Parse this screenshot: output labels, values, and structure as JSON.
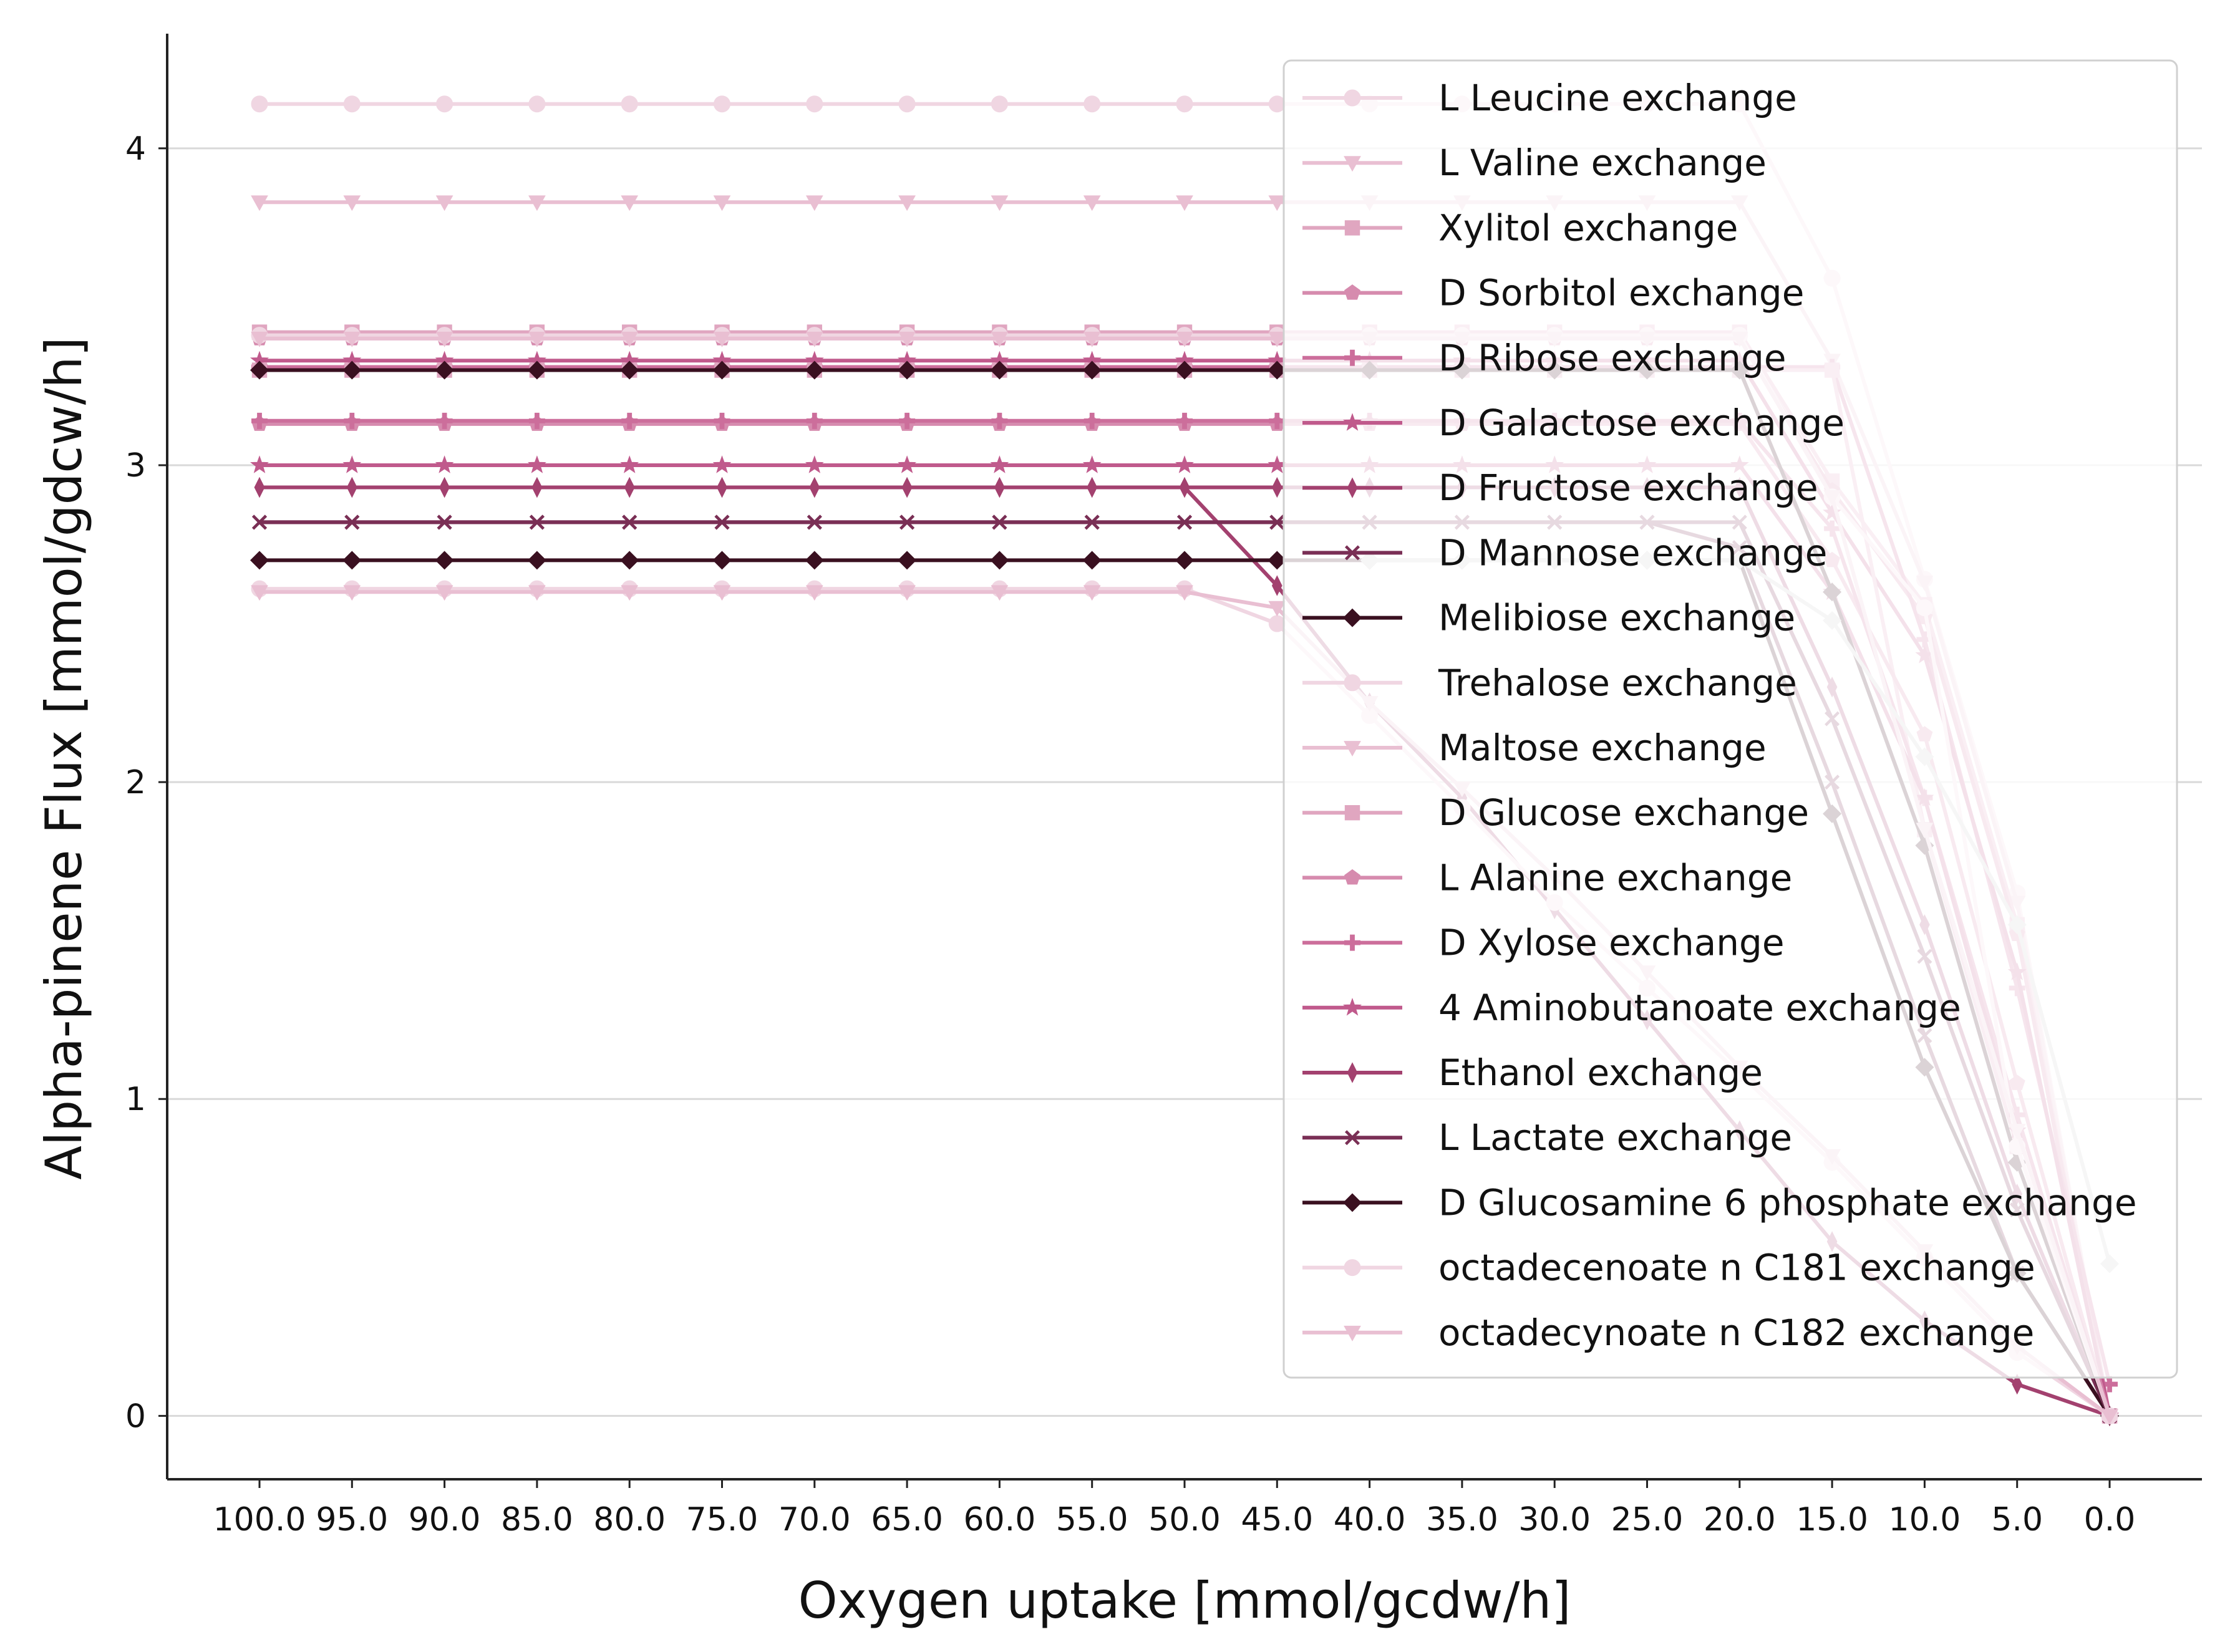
{
  "chart_data": {
    "type": "line",
    "xlabel": "Oxygen uptake [mmol/gcdw/h]",
    "ylabel": "Alpha-pinene Flux [mmol/gdcw/h]",
    "x": [
      100,
      95,
      90,
      85,
      80,
      75,
      70,
      65,
      60,
      55,
      50,
      45,
      40,
      35,
      30,
      25,
      20,
      15,
      10,
      5,
      0
    ],
    "x_tick_labels": [
      "100.0",
      "95.0",
      "90.0",
      "85.0",
      "80.0",
      "75.0",
      "70.0",
      "65.0",
      "60.0",
      "55.0",
      "50.0",
      "45.0",
      "40.0",
      "35.0",
      "30.0",
      "25.0",
      "20.0",
      "15.0",
      "10.0",
      "5.0",
      "0.0"
    ],
    "y_ticks": [
      0,
      1,
      2,
      3,
      4
    ],
    "ylim": [
      -0.2,
      4.35
    ],
    "grid": "horizontal",
    "legend_position": "upper-right",
    "series": [
      {
        "name": "L Leucine exchange",
        "color": "#f0d6e2",
        "marker": "circle",
        "values": [
          4.14,
          4.14,
          4.14,
          4.14,
          4.14,
          4.14,
          4.14,
          4.14,
          4.14,
          4.14,
          4.14,
          4.14,
          4.14,
          4.14,
          4.14,
          4.14,
          4.14,
          3.59,
          2.64,
          1.65,
          0.0
        ]
      },
      {
        "name": "L Valine exchange",
        "color": "#e9bfd2",
        "marker": "triangle",
        "values": [
          3.83,
          3.83,
          3.83,
          3.83,
          3.83,
          3.83,
          3.83,
          3.83,
          3.83,
          3.83,
          3.83,
          3.83,
          3.83,
          3.83,
          3.83,
          3.83,
          3.83,
          3.33,
          2.63,
          1.62,
          0.0
        ]
      },
      {
        "name": "Xylitol exchange",
        "color": "#e0a6c0",
        "marker": "square",
        "values": [
          3.42,
          3.42,
          3.42,
          3.42,
          3.42,
          3.42,
          3.42,
          3.42,
          3.42,
          3.42,
          3.42,
          3.42,
          3.42,
          3.42,
          3.42,
          3.42,
          3.42,
          2.95,
          2.56,
          1.55,
          0.0
        ]
      },
      {
        "name": "D Sorbitol exchange",
        "color": "#d68bae",
        "marker": "pentagon",
        "values": [
          3.4,
          3.4,
          3.4,
          3.4,
          3.4,
          3.4,
          3.4,
          3.4,
          3.4,
          3.4,
          3.4,
          3.4,
          3.4,
          3.4,
          3.4,
          3.4,
          3.4,
          2.92,
          2.52,
          1.52,
          0.0
        ]
      },
      {
        "name": "D Ribose exchange",
        "color": "#cc6e9b",
        "marker": "plus",
        "values": [
          3.31,
          3.31,
          3.31,
          3.31,
          3.31,
          3.31,
          3.31,
          3.31,
          3.31,
          3.31,
          3.31,
          3.31,
          3.31,
          3.31,
          3.31,
          3.31,
          3.31,
          3.31,
          2.45,
          1.35,
          0.1
        ]
      },
      {
        "name": "D Galactose exchange",
        "color": "#c05a8c",
        "marker": "star",
        "values": [
          3.33,
          3.33,
          3.33,
          3.33,
          3.33,
          3.33,
          3.33,
          3.33,
          3.33,
          3.33,
          3.33,
          3.33,
          3.33,
          3.33,
          3.33,
          3.33,
          3.33,
          2.85,
          2.4,
          1.4,
          0.0
        ]
      },
      {
        "name": "D Fructose exchange",
        "color": "#a3416f",
        "marker": "thin-diamond",
        "values": [
          2.93,
          2.93,
          2.93,
          2.93,
          2.93,
          2.93,
          2.93,
          2.93,
          2.93,
          2.93,
          2.93,
          2.62,
          2.25,
          1.95,
          1.6,
          1.25,
          0.9,
          0.55,
          0.3,
          0.1,
          0.0
        ]
      },
      {
        "name": "D Mannose exchange",
        "color": "#7a2f55",
        "marker": "x",
        "values": [
          2.82,
          2.82,
          2.82,
          2.82,
          2.82,
          2.82,
          2.82,
          2.82,
          2.82,
          2.82,
          2.82,
          2.82,
          2.82,
          2.82,
          2.82,
          2.82,
          2.74,
          2.0,
          1.2,
          0.45,
          0.0
        ]
      },
      {
        "name": "Melibiose exchange",
        "color": "#3a1020",
        "marker": "diamond",
        "values": [
          2.7,
          2.7,
          2.7,
          2.7,
          2.7,
          2.7,
          2.7,
          2.7,
          2.7,
          2.7,
          2.7,
          2.7,
          2.7,
          2.7,
          2.7,
          2.7,
          2.7,
          1.9,
          1.1,
          0.45,
          0.0
        ]
      },
      {
        "name": "Trehalose exchange",
        "color": "#f0d6e2",
        "marker": "circle",
        "values": [
          2.61,
          2.61,
          2.61,
          2.61,
          2.61,
          2.61,
          2.61,
          2.61,
          2.61,
          2.61,
          2.61,
          2.5,
          2.21,
          1.92,
          1.62,
          1.35,
          1.08,
          0.8,
          0.5,
          0.2,
          0.0
        ]
      },
      {
        "name": "Maltose exchange",
        "color": "#e9bfd2",
        "marker": "triangle",
        "values": [
          2.6,
          2.6,
          2.6,
          2.6,
          2.6,
          2.6,
          2.6,
          2.6,
          2.6,
          2.6,
          2.6,
          2.55,
          2.25,
          1.98,
          1.7,
          1.4,
          1.1,
          0.82,
          0.52,
          0.22,
          0.0
        ]
      },
      {
        "name": "D Glucose exchange",
        "color": "#e0a6c0",
        "marker": "square",
        "values": [
          3.3,
          3.3,
          3.3,
          3.3,
          3.3,
          3.3,
          3.3,
          3.3,
          3.3,
          3.3,
          3.3,
          3.3,
          3.3,
          3.3,
          3.3,
          3.3,
          3.3,
          3.3,
          1.85,
          0.85,
          0.0
        ]
      },
      {
        "name": "L Alanine exchange",
        "color": "#d68bae",
        "marker": "pentagon",
        "values": [
          3.13,
          3.13,
          3.13,
          3.13,
          3.13,
          3.13,
          3.13,
          3.13,
          3.13,
          3.13,
          3.13,
          3.13,
          3.13,
          3.13,
          3.13,
          3.13,
          3.13,
          2.7,
          2.15,
          1.05,
          0.0
        ]
      },
      {
        "name": "D Xylose exchange",
        "color": "#cc6e9b",
        "marker": "plus",
        "values": [
          3.14,
          3.14,
          3.14,
          3.14,
          3.14,
          3.14,
          3.14,
          3.14,
          3.14,
          3.14,
          3.14,
          3.14,
          3.14,
          3.14,
          3.14,
          3.14,
          3.14,
          2.8,
          1.95,
          0.95,
          0.0
        ]
      },
      {
        "name": "4 Aminobutanoate exchange",
        "color": "#c05a8c",
        "marker": "star",
        "values": [
          3.0,
          3.0,
          3.0,
          3.0,
          3.0,
          3.0,
          3.0,
          3.0,
          3.0,
          3.0,
          3.0,
          3.0,
          3.0,
          3.0,
          3.0,
          3.0,
          3.0,
          2.6,
          1.95,
          0.9,
          0.0
        ]
      },
      {
        "name": "Ethanol exchange",
        "color": "#a3416f",
        "marker": "thin-diamond",
        "values": [
          2.93,
          2.93,
          2.93,
          2.93,
          2.93,
          2.93,
          2.93,
          2.93,
          2.93,
          2.93,
          2.93,
          2.93,
          2.93,
          2.93,
          2.93,
          2.93,
          2.93,
          2.3,
          1.55,
          0.7,
          0.0
        ]
      },
      {
        "name": "L Lactate exchange",
        "color": "#7a2f55",
        "marker": "x",
        "values": [
          2.82,
          2.82,
          2.82,
          2.82,
          2.82,
          2.82,
          2.82,
          2.82,
          2.82,
          2.82,
          2.82,
          2.82,
          2.82,
          2.82,
          2.82,
          2.82,
          2.82,
          2.2,
          1.45,
          0.65,
          0.0
        ]
      },
      {
        "name": "D Glucosamine 6 phosphate exchange",
        "color": "#3a1020",
        "marker": "diamond",
        "values": [
          3.3,
          3.3,
          3.3,
          3.3,
          3.3,
          3.3,
          3.3,
          3.3,
          3.3,
          3.3,
          3.3,
          3.3,
          3.3,
          3.3,
          3.3,
          3.3,
          3.3,
          2.6,
          1.8,
          0.8,
          0.0
        ]
      },
      {
        "name": "octadecenoate n C181 exchange",
        "color": "#f0d6e2",
        "marker": "circle",
        "values": [
          3.41,
          3.41,
          3.41,
          3.41,
          3.41,
          3.41,
          3.41,
          3.41,
          3.41,
          3.41,
          3.41,
          3.41,
          3.41,
          3.41,
          3.41,
          3.41,
          3.41,
          2.9,
          2.55,
          0.85,
          0.0
        ]
      },
      {
        "name": "octadecynoate n C182 exchange",
        "color": "#e9bfd2",
        "marker": "triangle",
        "values": [
          3.4,
          3.4,
          3.4,
          3.4,
          3.4,
          3.4,
          3.4,
          3.4,
          3.4,
          3.4,
          3.4,
          3.4,
          3.4,
          3.4,
          3.4,
          3.4,
          3.4,
          2.9,
          1.85,
          0.9,
          0.0
        ]
      },
      {
        "name": "",
        "color": "#cccccc",
        "marker": "diamond",
        "values": [
          null,
          null,
          null,
          null,
          null,
          null,
          null,
          null,
          null,
          null,
          null,
          null,
          2.7,
          2.7,
          2.7,
          2.7,
          2.7,
          2.51,
          2.08,
          1.55,
          0.48
        ]
      }
    ]
  }
}
